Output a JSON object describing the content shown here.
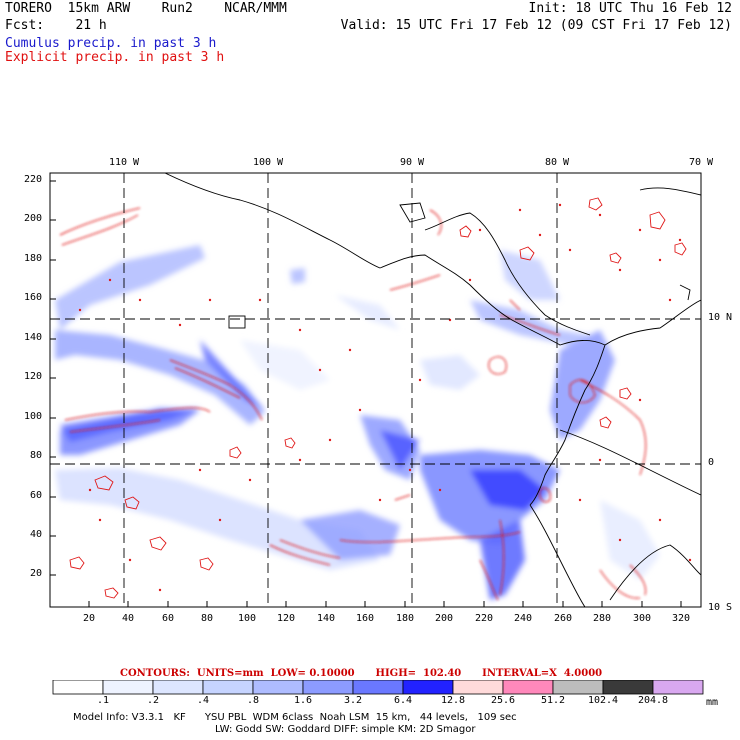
{
  "header": {
    "model": "TORERO",
    "resolution": "15km ARW",
    "run": "Run2",
    "org": "NCAR/MMM",
    "init": "Init: 18 UTC Thu 16 Feb 12",
    "fcst_label": "Fcst:",
    "fcst_value": "21 h",
    "valid": "Valid: 15 UTC Fri 17 Feb 12 (09 CST Fri 17 Feb 12)",
    "cumulus": "Cumulus precip. in past 3 h",
    "explicit": "Explicit precip. in past 3 h"
  },
  "map": {
    "lon_labels": [
      "110 W",
      "100 W",
      "90 W",
      "80 W",
      "70 W"
    ],
    "lat_labels": [
      "10 N",
      "0",
      "10 S"
    ],
    "y_ticks": [
      "220",
      "200",
      "180",
      "160",
      "140",
      "120",
      "100",
      "80",
      "60",
      "40",
      "20"
    ],
    "x_ticks": [
      "20",
      "40",
      "60",
      "80",
      "100",
      "120",
      "140",
      "160",
      "180",
      "200",
      "220",
      "240",
      "260",
      "280",
      "300",
      "320"
    ]
  },
  "contours": {
    "text": "CONTOURS:  UNITS=mm  LOW= 0.10000      HIGH=  102.40      INTERVAL=X  4.0000"
  },
  "colorbar": {
    "colors": [
      "#ffffff",
      "#eef3ff",
      "#dde6ff",
      "#c6d4ff",
      "#aebcff",
      "#8c9bff",
      "#6a78ff",
      "#2222ff",
      "#ffdada",
      "#ff88bb",
      "#bdbdbd",
      "#3a3a3a",
      "#d9a8f0"
    ],
    "labels": [
      ".1",
      ".2",
      ".4",
      ".8",
      "1.6",
      "3.2",
      "6.4",
      "12.8",
      "25.6",
      "51.2",
      "102.4",
      "204.8"
    ],
    "unit": "mm"
  },
  "footer": {
    "line1": "Model Info: V3.3.1   KF      YSU PBL  WDM 6class  Noah LSM  15 km,   44 levels,   109 sec",
    "line2": "LW: Godd SW: Goddard DIFF: simple KM: 2D Smagor"
  }
}
